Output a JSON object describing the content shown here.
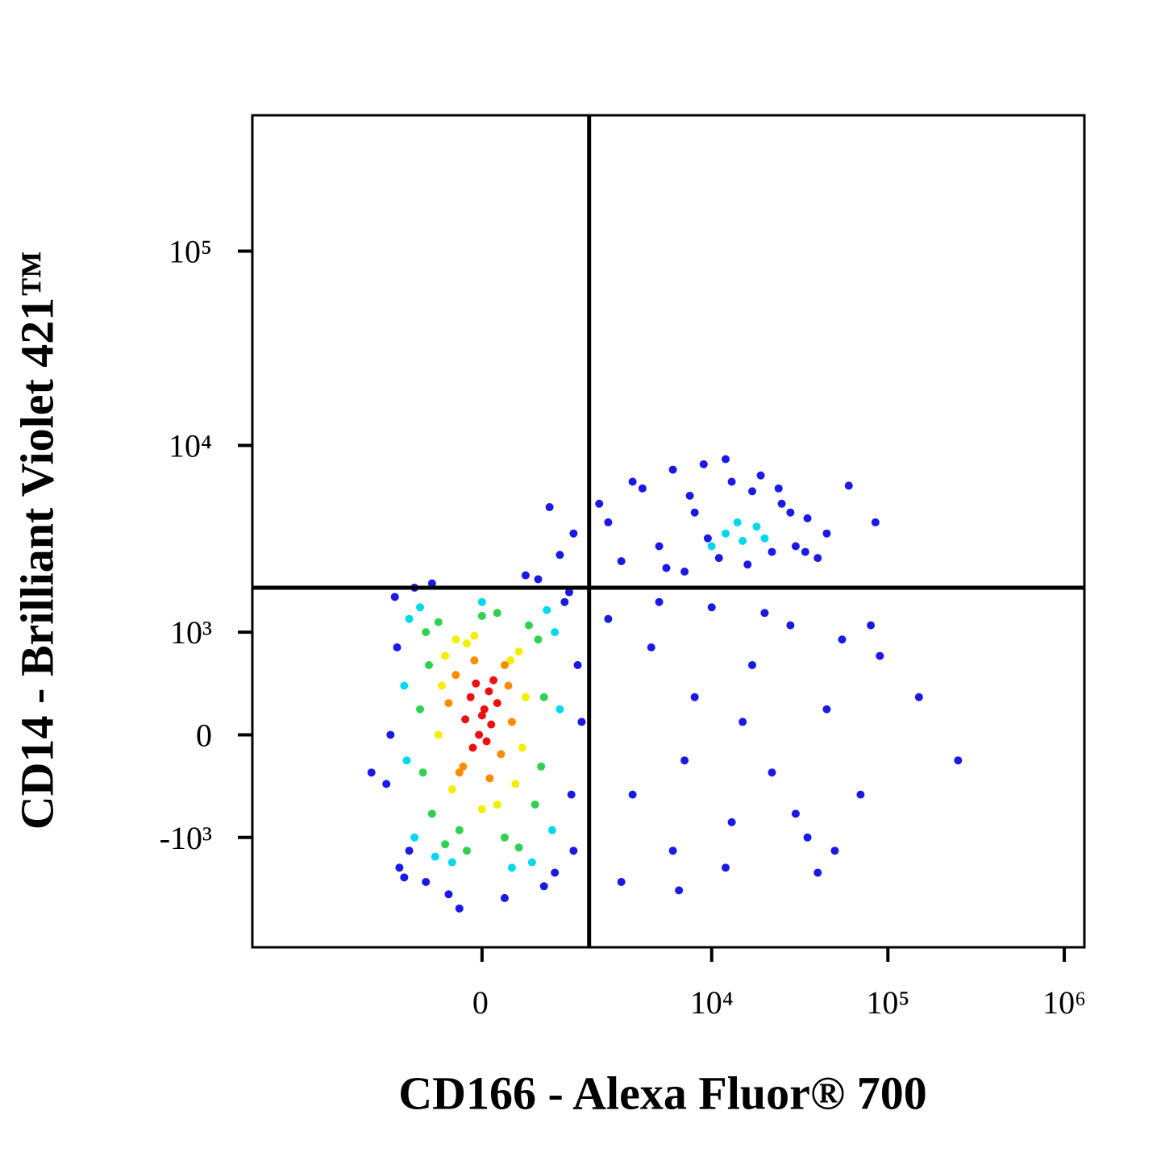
{
  "chart_data": {
    "type": "scatter",
    "x_label": "CD166 - Alexa Fluor® 700",
    "y_label": "CD14 - Brilliant Violet 421™",
    "xscale": "biexponential",
    "yscale": "biexponential",
    "xlim": [
      -10000,
      1300000
    ],
    "ylim": [
      -4000,
      500000
    ],
    "xticks": [
      0,
      {
        "value": 10000,
        "label": "10⁴"
      },
      {
        "value": 100000,
        "label": "10⁵"
      },
      {
        "value": 1000000,
        "label": "10⁶"
      }
    ],
    "yticks": [
      {
        "value": -1000,
        "label": "-10³"
      },
      0,
      {
        "value": 1000,
        "label": "10³"
      },
      {
        "value": 10000,
        "label": "10⁴"
      },
      {
        "value": 100000,
        "label": "10⁵"
      }
    ],
    "gates": {
      "x": 1900,
      "y": 1800
    },
    "density_levels": [
      {
        "color": "#1a1ae6",
        "x": [
          -1400,
          1400,
          -1300,
          1500,
          -1500,
          1600,
          -1200,
          1300,
          -800,
          900,
          -1000,
          1100,
          -1600,
          -1350,
          1450,
          -700,
          600,
          -450,
          300,
          -2000,
          1700,
          -1100,
          800,
          -300,
          2200,
          3000,
          4000,
          5000,
          6000,
          7000,
          8000,
          9000,
          11000,
          13000,
          16000,
          19000,
          22000,
          25000,
          30000,
          35000,
          40000,
          45000,
          2500,
          3500,
          5500,
          7500,
          9500,
          12000,
          17000,
          24000,
          28000,
          34000,
          60000,
          85000,
          1500,
          1200,
          1000,
          2500,
          3500,
          4500,
          6000,
          8000,
          10000,
          13000,
          17000,
          22000,
          28000,
          35000,
          45000,
          55000,
          70000,
          90000,
          3000,
          5000,
          7000,
          12000,
          20000,
          30000,
          50000,
          80000,
          150000,
          250000,
          6500,
          15000,
          40000
        ],
        "y": [
          1600,
          1700,
          -1500,
          -1200,
          0,
          600,
          -1700,
          1500,
          -1800,
          -1900,
          1800,
          -1600,
          -400,
          800,
          -500,
          1900,
          2100,
          -2100,
          -2200,
          -300,
          100,
          -1200,
          2000,
          -2500,
          5000,
          2500,
          6000,
          3000,
          7500,
          2200,
          4500,
          8000,
          2600,
          6500,
          2400,
          7000,
          2800,
          5000,
          3000,
          4200,
          2600,
          3500,
          4000,
          6500,
          2300,
          5500,
          3300,
          8500,
          5800,
          6000,
          4500,
          2800,
          6200,
          4000,
          3500,
          2700,
          4800,
          1200,
          -500,
          800,
          -1200,
          300,
          1400,
          -800,
          600,
          -300,
          1100,
          -1000,
          200,
          900,
          -500,
          700,
          -1800,
          1500,
          -200,
          -1500,
          1300,
          -700,
          -1200,
          1100,
          300,
          -200,
          -2000,
          100,
          -1600
        ]
      },
      {
        "color": "#00d8f0",
        "x": [
          -1100,
          1100,
          -1000,
          1050,
          -1200,
          1200,
          -900,
          950,
          -400,
          400,
          -1150,
          0,
          -650,
          700,
          12000,
          15000,
          18000,
          10000,
          20000,
          14000
        ],
        "y": [
          1200,
          1000,
          -1000,
          -900,
          400,
          200,
          1400,
          1350,
          -1400,
          -1500,
          -200,
          1500,
          -1300,
          -1400,
          3500,
          3200,
          3800,
          3000,
          3300,
          4000
        ]
      },
      {
        "color": "#30d050",
        "x": [
          -800,
          800,
          -700,
          750,
          -900,
          900,
          -600,
          650,
          -300,
          300,
          -850,
          850,
          0,
          -500,
          500,
          -750,
          200,
          -200
        ],
        "y": [
          1000,
          900,
          -700,
          -600,
          200,
          300,
          1150,
          1100,
          -900,
          -1000,
          -300,
          -250,
          1250,
          -1100,
          -1150,
          600,
          1300,
          -1200
        ]
      },
      {
        "color": "#f0f000",
        "x": [
          -500,
          500,
          -600,
          600,
          -400,
          450,
          -200,
          200,
          -550,
          550,
          0,
          -350,
          380,
          -100
        ],
        "y": [
          700,
          750,
          0,
          300,
          -450,
          -400,
          850,
          -600,
          400,
          -100,
          -650,
          900,
          650,
          950
        ]
      },
      {
        "color": "#ff8c00",
        "x": [
          -350,
          300,
          -250,
          400,
          -450,
          250,
          -100,
          350,
          -300,
          100
        ],
        "y": [
          500,
          600,
          -250,
          100,
          250,
          -150,
          650,
          400,
          -300,
          -350
        ]
      },
      {
        "color": "#ee1010",
        "x": [
          0,
          -150,
          120,
          -80,
          200,
          60,
          -220,
          150,
          -40,
          90,
          -120,
          30
        ],
        "y": [
          150,
          300,
          80,
          420,
          250,
          -50,
          120,
          450,
          0,
          350,
          -100,
          200
        ]
      }
    ]
  }
}
